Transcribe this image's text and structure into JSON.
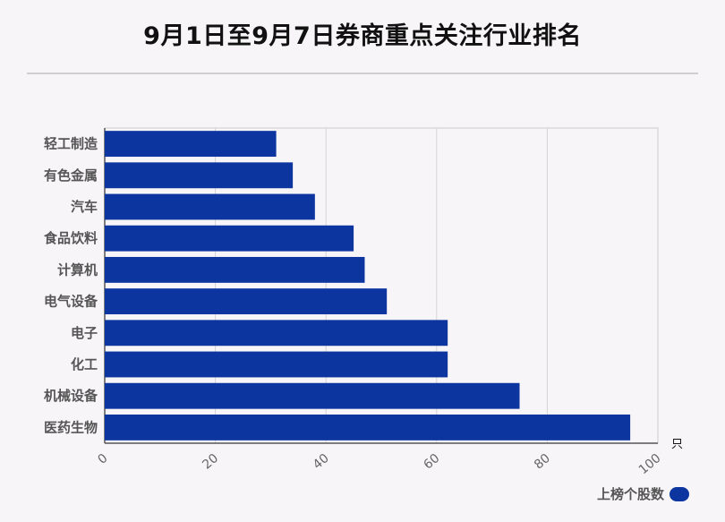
{
  "title": "9月1日至9月7日券商重点关注行业排名",
  "chart_data": {
    "type": "bar",
    "orientation": "horizontal",
    "categories": [
      "轻工制造",
      "有色金属",
      "汽车",
      "食品饮料",
      "计算机",
      "电气设备",
      "电子",
      "化工",
      "机械设备",
      "医药生物"
    ],
    "series": [
      {
        "name": "上榜个股数",
        "values": [
          31,
          34,
          38,
          45,
          47,
          51,
          62,
          62,
          75,
          95
        ]
      }
    ],
    "xlim": [
      0,
      100
    ],
    "xticks": [
      "0",
      "20",
      "40",
      "60",
      "80",
      "100"
    ],
    "xunit": "只",
    "grid": true,
    "legend_position": "bottom-right",
    "bar_color": "#0c35a0"
  }
}
